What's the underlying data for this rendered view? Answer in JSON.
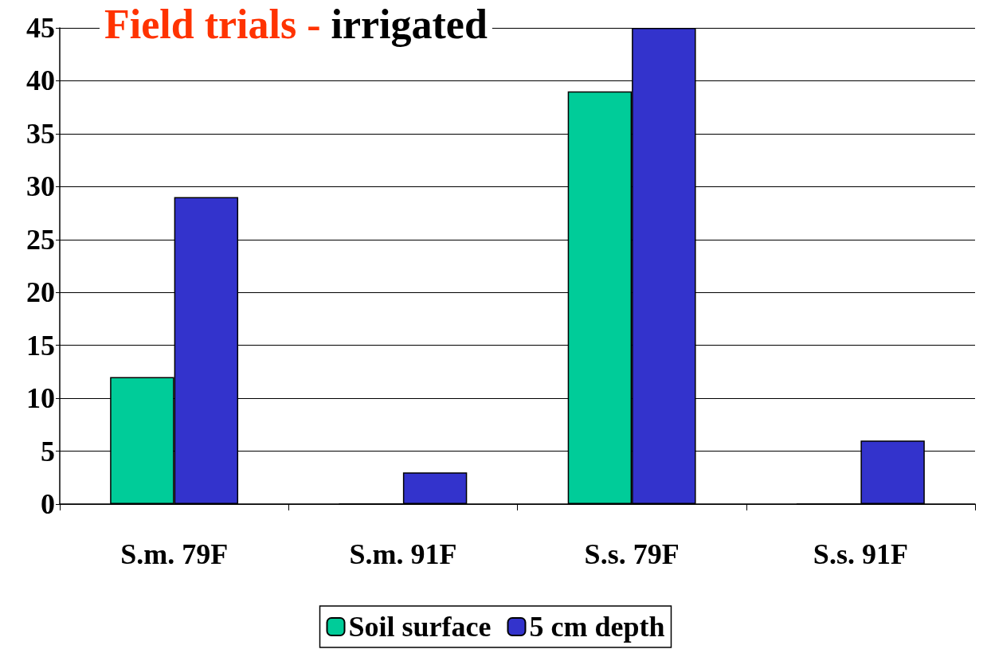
{
  "chart_data": {
    "type": "bar",
    "title": "Field trials - irrigated",
    "categories": [
      "S.m. 79F",
      "S.m. 91F",
      "S.s. 79F",
      "S.s. 91F"
    ],
    "series": [
      {
        "name": "Soil surface",
        "color": "#00cc99",
        "values": [
          12,
          0,
          39,
          0
        ]
      },
      {
        "name": "5 cm depth",
        "color": "#3333cc",
        "values": [
          29,
          3,
          45,
          6
        ]
      }
    ],
    "ylim": [
      0,
      45
    ],
    "yticks": [
      0,
      5,
      10,
      15,
      20,
      25,
      30,
      35,
      40,
      45
    ],
    "grid": "y",
    "legend": "bottom"
  }
}
